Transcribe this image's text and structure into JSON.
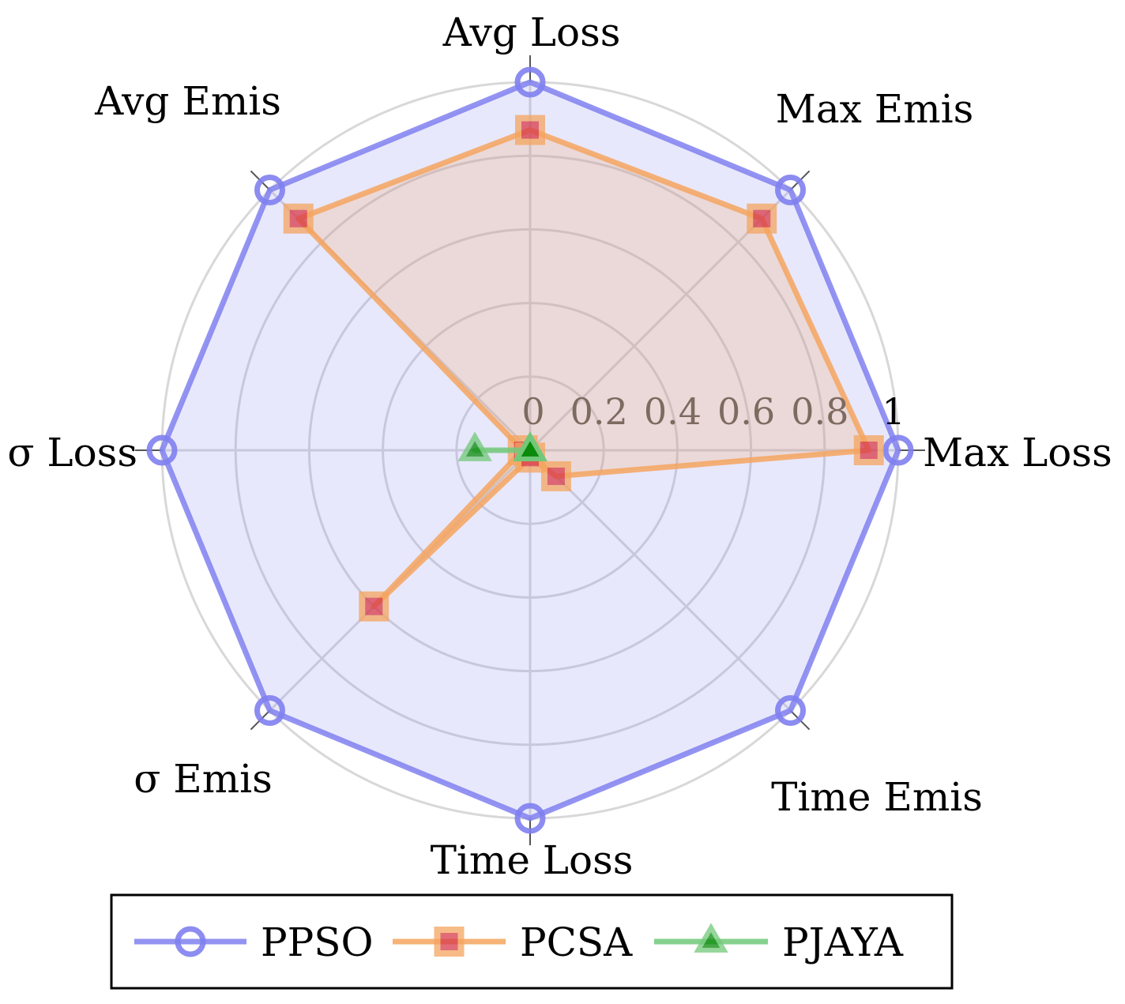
{
  "chart_data": {
    "type": "radar",
    "axes": [
      "Max Loss",
      "Max Emis",
      "Avg Loss",
      "Avg Emis",
      "σ Loss",
      "σ Emis",
      "Time Loss",
      "Time Emis"
    ],
    "rlim": [
      0,
      1
    ],
    "ticks": [
      "0",
      "0.2",
      "0.4",
      "0.6",
      "0.8",
      "1"
    ],
    "tick_values": [
      0,
      0.2,
      0.4,
      0.6,
      0.8,
      1
    ],
    "grid": true,
    "legend_position": "bottom",
    "series": [
      {
        "name": "PPSO",
        "values": [
          1,
          1,
          1,
          1,
          1,
          1,
          1,
          1
        ],
        "marker": "circle",
        "color": "#8080f0"
      },
      {
        "name": "PCSA",
        "values": [
          0.92,
          0.89,
          0.87,
          0.89,
          0.02,
          0.6,
          0.02,
          0.1
        ],
        "marker": "square",
        "color": "#f5a55f",
        "marker_inner_color": "#d83a4a"
      },
      {
        "name": "PJAYA",
        "values": [
          0,
          0,
          0,
          0,
          0.15,
          0,
          0,
          0
        ],
        "marker": "triangle",
        "color": "#72c97a",
        "marker_inner_color": "#0a8a0a"
      }
    ]
  }
}
